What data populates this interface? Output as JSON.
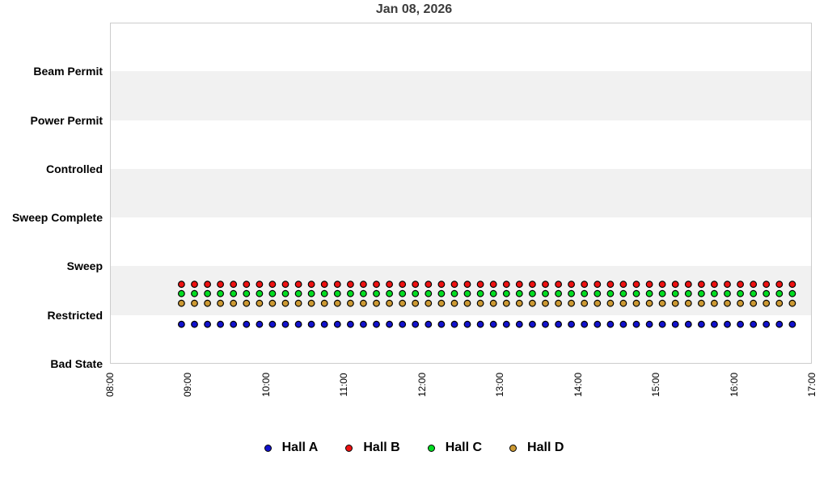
{
  "chart_data": {
    "type": "scatter",
    "title": "Jan 08, 2026",
    "x_axis": {
      "range": [
        "08:00",
        "17:00"
      ],
      "ticks": [
        "08:00",
        "09:00",
        "10:00",
        "11:00",
        "12:00",
        "13:00",
        "14:00",
        "15:00",
        "16:00",
        "17:00"
      ],
      "tick_label_rotation_deg": -90
    },
    "y_axis": {
      "categories_bottom_to_top": [
        "Bad State",
        "Restricted",
        "Sweep",
        "Sweep Complete",
        "Controlled",
        "Power Permit",
        "Beam Permit"
      ],
      "striped_bands": true
    },
    "sample_times": [
      "08:55",
      "09:05",
      "09:15",
      "09:25",
      "09:35",
      "09:45",
      "09:55",
      "10:05",
      "10:15",
      "10:25",
      "10:35",
      "10:45",
      "10:55",
      "11:05",
      "11:15",
      "11:25",
      "11:35",
      "11:45",
      "11:55",
      "12:05",
      "12:15",
      "12:25",
      "12:35",
      "12:45",
      "12:55",
      "13:05",
      "13:15",
      "13:25",
      "13:35",
      "13:45",
      "13:55",
      "14:05",
      "14:15",
      "14:25",
      "14:35",
      "14:45",
      "14:55",
      "15:05",
      "15:15",
      "15:25",
      "15:35",
      "15:45",
      "15:55",
      "16:05",
      "16:15",
      "16:25",
      "16:35",
      "16:45"
    ],
    "series": [
      {
        "name": "Hall A",
        "color": "#1212cd",
        "marker": "circle",
        "state_for_all_samples": "Restricted",
        "dodge_offset_rows": 0.19
      },
      {
        "name": "Hall B",
        "color": "#ee1111",
        "marker": "circle",
        "state_for_all_samples": "Restricted",
        "dodge_offset_rows": -0.63
      },
      {
        "name": "Hall C",
        "color": "#00dd22",
        "marker": "circle",
        "state_for_all_samples": "Restricted",
        "dodge_offset_rows": -0.44
      },
      {
        "name": "Hall D",
        "color": "#cc9933",
        "marker": "circle",
        "state_for_all_samples": "Restricted",
        "dodge_offset_rows": -0.24
      }
    ],
    "legend": {
      "position": "bottom",
      "items": [
        "Hall A",
        "Hall B",
        "Hall C",
        "Hall D"
      ]
    }
  },
  "colors": {
    "background": "#ffffff",
    "band": "#f1f1f1",
    "plot_border": "#cccccc",
    "title": "#3c3c3c",
    "text": "#000000",
    "marker_outline": "#000000"
  }
}
